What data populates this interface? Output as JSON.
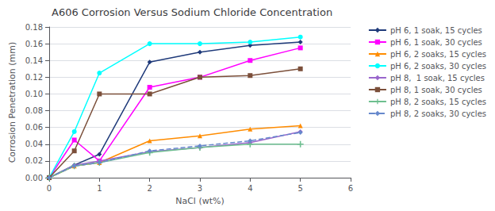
{
  "chart_data": {
    "type": "line",
    "title": "A606 Corrosion Versus Sodium Chloride Concentration",
    "xlabel": "NaCl (wt%)",
    "ylabel": "Corrosion Penetration (mm)",
    "x": [
      0,
      0.5,
      1.0,
      2.0,
      3.0,
      4.0,
      5.0
    ],
    "xlim": [
      0,
      6
    ],
    "ylim": [
      0,
      0.18
    ],
    "xticks": [
      0,
      1,
      2,
      3,
      4,
      5,
      6
    ],
    "yticks": [
      {
        "value": 0,
        "label": "0.00"
      },
      0.02,
      0.04,
      0.06,
      0.08,
      {
        "value": 0.1,
        "label": "0.10"
      },
      0.12,
      0.14,
      0.16,
      0.18
    ],
    "grid": true,
    "legend": "right",
    "series": [
      {
        "name": "pH 6, 1 soak, 15 cycles",
        "color": "#1F3A7A",
        "marker": "diamond",
        "line_style": "solid",
        "values": [
          0,
          0.015,
          0.028,
          0.138,
          0.15,
          0.158,
          0.162
        ]
      },
      {
        "name": "pH 6, 1 soak, 30 cycles",
        "color": "#FF00FF",
        "marker": "square",
        "line_style": "solid",
        "values": [
          0,
          0.045,
          0.02,
          0.108,
          0.12,
          0.14,
          0.155
        ]
      },
      {
        "name": "pH 6, 2 soaks, 15 cycles",
        "color": "#FF8C00",
        "marker": "triangle",
        "line_style": "solid",
        "values": [
          0,
          0.014,
          0.018,
          0.044,
          0.05,
          0.058,
          0.062
        ]
      },
      {
        "name": "pH 6, 2 soaks, 30 cycles",
        "color": "#00FFFF",
        "marker": "circle",
        "line_style": "solid",
        "values": [
          0,
          0.055,
          0.125,
          0.16,
          0.16,
          0.162,
          0.168
        ]
      },
      {
        "name": "pH 8,  1 soak, 15 cycles",
        "color": "#9966CC",
        "marker": "diamond",
        "line_style": "solid",
        "values": [
          0,
          0.015,
          0.02,
          0.031,
          0.036,
          0.042,
          0.055
        ]
      },
      {
        "name": "pH 8, 1 soak, 30 cycles",
        "color": "#7B4F3A",
        "marker": "square",
        "line_style": "solid",
        "values": [
          0,
          0.032,
          0.1,
          0.1,
          0.12,
          0.122,
          0.13
        ]
      },
      {
        "name": "pH 8, 2 soaks, 15 cycles",
        "color": "#6DBF8F",
        "marker": "plus",
        "line_style": "solid",
        "values": [
          0,
          0.014,
          0.018,
          0.03,
          0.036,
          0.04,
          0.04
        ]
      },
      {
        "name": "pH 8, 2 soaks, 30 cycles",
        "color": "#6688CC",
        "marker": "diamond",
        "line_style": "dashed",
        "values": [
          0,
          0.014,
          0.018,
          0.032,
          0.038,
          0.044,
          0.054
        ]
      }
    ]
  }
}
